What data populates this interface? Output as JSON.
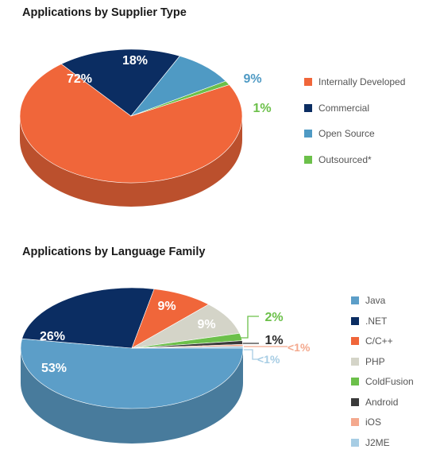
{
  "chart_data": [
    {
      "type": "pie",
      "title": "Applications by Supplier Type",
      "slices": [
        {
          "label": "Internally Developed",
          "value": 72,
          "display": "72%",
          "color": "#f0663a"
        },
        {
          "label": "Commercial",
          "value": 18,
          "display": "18%",
          "color": "#0b2d62"
        },
        {
          "label": "Open Source",
          "value": 9,
          "display": "9%",
          "color": "#4f9ac4"
        },
        {
          "label": "Outsourced*",
          "value": 1,
          "display": "1%",
          "color": "#6cc04a"
        }
      ],
      "legend_position": "right"
    },
    {
      "type": "pie",
      "title": "Applications by Language Family",
      "slices": [
        {
          "label": "Java",
          "value": 53,
          "display": "53%",
          "color": "#5c9ec8"
        },
        {
          "label": ".NET",
          "value": 26,
          "display": "26%",
          "color": "#0b2d62"
        },
        {
          "label": "C/C++",
          "value": 9,
          "display": "9%",
          "color": "#f0663a"
        },
        {
          "label": "PHP",
          "value": 9,
          "display": "9%",
          "color": "#d4d4c8"
        },
        {
          "label": "ColdFusion",
          "value": 2,
          "display": "2%",
          "color": "#6cc04a"
        },
        {
          "label": "Android",
          "value": 1,
          "display": "1%",
          "color": "#3a3a3a"
        },
        {
          "label": "iOS",
          "value": 0.5,
          "display": "<1%",
          "color": "#f4a98e"
        },
        {
          "label": "J2ME",
          "value": 0.5,
          "display": "<1%",
          "color": "#a7cde4"
        }
      ],
      "legend_position": "right"
    }
  ]
}
